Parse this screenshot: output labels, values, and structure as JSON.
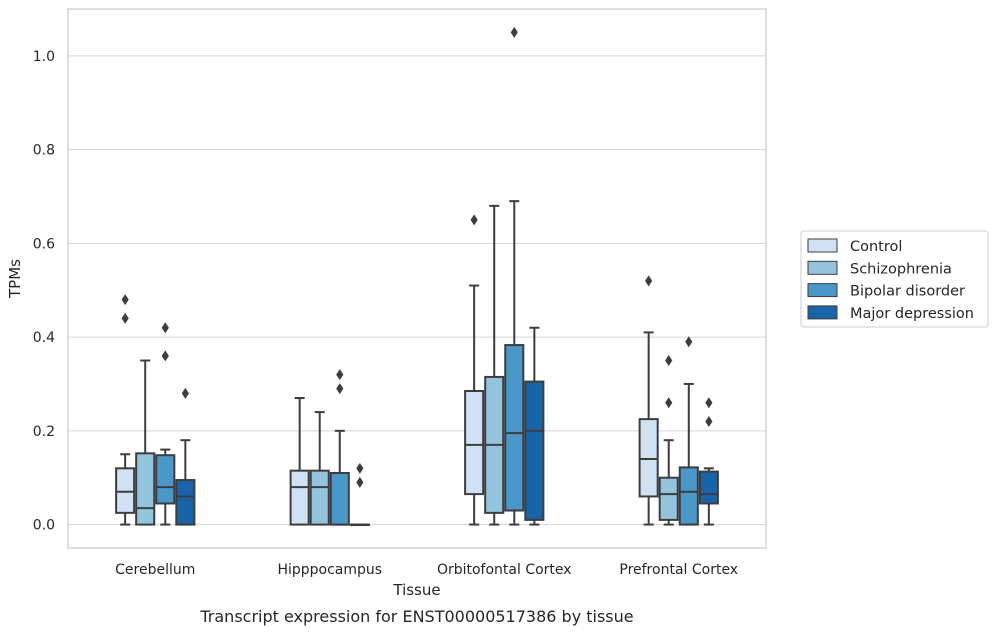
{
  "chart_data": {
    "type": "box",
    "caption": "Transcript expression for ENST00000517386 by tissue",
    "xlabel": "Tissue",
    "ylabel": "TPMs",
    "ylim": [
      -0.05,
      1.1
    ],
    "yticks": [
      0.0,
      0.2,
      0.4,
      0.6,
      0.8,
      1.0
    ],
    "ytick_labels": [
      "0.0",
      "0.2",
      "0.4",
      "0.6",
      "0.8",
      "1.0"
    ],
    "grid": "horizontal",
    "legend_position": "right",
    "categories": [
      "Cerebellum",
      "Hipppocampus",
      "Orbitofontal Cortex",
      "Prefrontal Cortex"
    ],
    "series": [
      {
        "name": "Control",
        "color": "#cfe1f2",
        "boxes": [
          {
            "whislo": 0.0,
            "q1": 0.025,
            "med": 0.07,
            "q3": 0.12,
            "whishi": 0.15,
            "fliers": [
              0.44,
              0.48
            ]
          },
          {
            "whislo": 0.0,
            "q1": 0.0,
            "med": 0.08,
            "q3": 0.115,
            "whishi": 0.27,
            "fliers": []
          },
          {
            "whislo": 0.0,
            "q1": 0.065,
            "med": 0.17,
            "q3": 0.285,
            "whishi": 0.51,
            "fliers": [
              0.65
            ]
          },
          {
            "whislo": 0.0,
            "q1": 0.06,
            "med": 0.14,
            "q3": 0.225,
            "whishi": 0.41,
            "fliers": [
              0.52
            ]
          }
        ]
      },
      {
        "name": "Schizophrenia",
        "color": "#93c4de",
        "boxes": [
          {
            "whislo": 0.0,
            "q1": 0.0,
            "med": 0.035,
            "q3": 0.152,
            "whishi": 0.35,
            "fliers": []
          },
          {
            "whislo": 0.0,
            "q1": 0.0,
            "med": 0.08,
            "q3": 0.115,
            "whishi": 0.24,
            "fliers": []
          },
          {
            "whislo": 0.0,
            "q1": 0.025,
            "med": 0.17,
            "q3": 0.315,
            "whishi": 0.68,
            "fliers": []
          },
          {
            "whislo": 0.0,
            "q1": 0.01,
            "med": 0.065,
            "q3": 0.1,
            "whishi": 0.18,
            "fliers": [
              0.26,
              0.35
            ]
          }
        ]
      },
      {
        "name": "Bipolar disorder",
        "color": "#4a98c9",
        "boxes": [
          {
            "whislo": 0.0,
            "q1": 0.045,
            "med": 0.08,
            "q3": 0.148,
            "whishi": 0.16,
            "fliers": [
              0.36,
              0.42
            ]
          },
          {
            "whislo": 0.0,
            "q1": 0.0,
            "med": 0.0,
            "q3": 0.11,
            "whishi": 0.2,
            "fliers": [
              0.29,
              0.32
            ]
          },
          {
            "whislo": 0.0,
            "q1": 0.03,
            "med": 0.195,
            "q3": 0.383,
            "whishi": 0.69,
            "fliers": [
              1.05
            ]
          },
          {
            "whislo": 0.0,
            "q1": 0.0,
            "med": 0.07,
            "q3": 0.122,
            "whishi": 0.3,
            "fliers": [
              0.39
            ]
          }
        ]
      },
      {
        "name": "Major depression",
        "color": "#1764ab",
        "boxes": [
          {
            "whislo": 0.0,
            "q1": 0.0,
            "med": 0.06,
            "q3": 0.095,
            "whishi": 0.18,
            "fliers": [
              0.28
            ]
          },
          {
            "whislo": 0.0,
            "q1": 0.0,
            "med": 0.0,
            "q3": 0.0,
            "whishi": 0.0,
            "fliers": [
              0.09,
              0.12
            ]
          },
          {
            "whislo": 0.0,
            "q1": 0.01,
            "med": 0.2,
            "q3": 0.305,
            "whishi": 0.42,
            "fliers": []
          },
          {
            "whislo": 0.0,
            "q1": 0.045,
            "med": 0.065,
            "q3": 0.113,
            "whishi": 0.12,
            "fliers": [
              0.22,
              0.26
            ]
          }
        ]
      }
    ]
  }
}
